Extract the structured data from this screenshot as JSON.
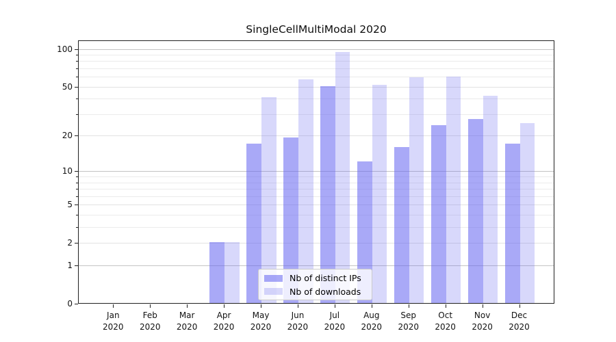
{
  "title": "SingleCellMultiModal 2020",
  "chart_data": {
    "type": "bar",
    "title": "SingleCellMultiModal 2020",
    "categories": [
      "Jan 2020",
      "Feb 2020",
      "Mar 2020",
      "Apr 2020",
      "May 2020",
      "Jun 2020",
      "Jul 2020",
      "Aug 2020",
      "Sep 2020",
      "Oct 2020",
      "Nov 2020",
      "Dec 2020"
    ],
    "series": [
      {
        "name": "Nb of distinct IPs",
        "color": "#6262f0",
        "alpha": 0.55,
        "values": [
          0,
          0,
          0,
          2,
          17,
          19,
          50,
          12,
          16,
          24,
          27,
          17
        ]
      },
      {
        "name": "Nb of downloads",
        "color": "#6262f0",
        "alpha": 0.25,
        "values": [
          0,
          0,
          0,
          2,
          41,
          57,
          94,
          51,
          59,
          60,
          42,
          25
        ]
      }
    ],
    "xlabel": "",
    "ylabel": "",
    "yscale": "log1p",
    "ylim": [
      0,
      117
    ],
    "yticks": [
      0,
      1,
      2,
      5,
      10,
      20,
      50,
      100
    ],
    "decade_gridlines": [
      1,
      10,
      100
    ],
    "minor_gridlines": [
      3,
      4,
      6,
      7,
      8,
      9,
      30,
      40,
      60,
      70,
      80,
      90
    ],
    "grid": true,
    "legend_position": "lower center (inside plot)"
  },
  "legend": {
    "items": [
      "Nb of distinct IPs",
      "Nb of downloads"
    ]
  }
}
